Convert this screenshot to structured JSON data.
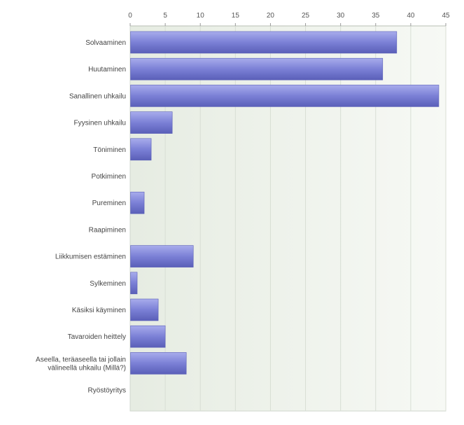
{
  "chart_data": {
    "type": "bar",
    "orientation": "horizontal",
    "categories": [
      "Solvaaminen",
      "Huutaminen",
      "Sanallinen uhkailu",
      "Fyysinen uhkailu",
      "Töniminen",
      "Potkiminen",
      "Pureminen",
      "Raapiminen",
      "Liikkumisen estäminen",
      "Sylkeminen",
      "Käsiksi käyminen",
      "Tavaroiden heittely",
      "Aseella, teräaseella tai jollain välineellä uhkailu (Millä?)",
      "Ryöstöyritys"
    ],
    "category_lines": [
      [
        "Solvaaminen"
      ],
      [
        "Huutaminen"
      ],
      [
        "Sanallinen uhkailu"
      ],
      [
        "Fyysinen uhkailu"
      ],
      [
        "Töniminen"
      ],
      [
        "Potkiminen"
      ],
      [
        "Pureminen"
      ],
      [
        "Raapiminen"
      ],
      [
        "Liikkumisen estäminen"
      ],
      [
        "Sylkeminen"
      ],
      [
        "Käsiksi käyminen"
      ],
      [
        "Tavaroiden heittely"
      ],
      [
        "Aseella, teräaseella tai jollain",
        "välineellä uhkailu (Millä?)"
      ],
      [
        "Ryöstöyritys"
      ]
    ],
    "values": [
      38,
      36,
      44,
      6,
      3,
      0,
      2,
      0,
      9,
      1,
      4,
      5,
      8,
      0
    ],
    "xlim": [
      0,
      45
    ],
    "ticks": [
      0,
      5,
      10,
      15,
      20,
      25,
      30,
      35,
      40,
      45
    ],
    "axis_position": "top",
    "grid": true,
    "bar_color": "#7b80d6",
    "bar_color_light": "#a8acec",
    "bar_color_dark": "#5a5fb8",
    "plot_background": "#eef2ea"
  }
}
